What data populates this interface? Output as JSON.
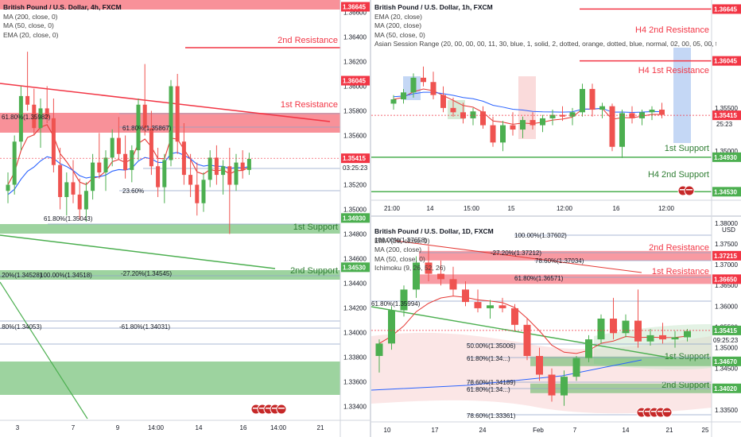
{
  "colors": {
    "bull": "#4caf50",
    "bear": "#ef5350",
    "resistance": "#f23645",
    "support": "#4caf50",
    "ema": "#e53935",
    "ma200": "#9e9e9e",
    "ma50": "#2962ff",
    "fib": "#8fa3c9"
  },
  "panels": {
    "h4": {
      "title": "British Pound / U.S. Dollar, 4h, FXCM",
      "studies": [
        "MA (200, close, 0)",
        "MA (50, close, 0)",
        "EMA (20, close, 0)"
      ],
      "currency": "USD",
      "timer": "03:25:23",
      "last_price": "1.35415",
      "x_labels": [
        "3",
        "7",
        "9",
        "14:00",
        "14",
        "16",
        "14:00",
        "21"
      ],
      "y_labels": [
        "1.36600",
        "1.36400",
        "1.36200",
        "1.36000",
        "1.35800",
        "1.35600",
        "1.35400",
        "1.35200",
        "1.35000",
        "1.34800",
        "1.34600",
        "1.34400",
        "1.34200",
        "1.34000",
        "1.33800",
        "1.33600",
        "1.33400"
      ],
      "zones": [
        {
          "label": "2nd Resistance",
          "tag": "1.36645",
          "kind": "resistance"
        },
        {
          "label": "1st Resistance",
          "tag": "1.36045",
          "kind": "resistance"
        },
        {
          "label": "1st Support",
          "tag": "1.34930",
          "kind": "support"
        },
        {
          "label": "2nd Support",
          "tag": "1.34530",
          "kind": "support"
        }
      ],
      "fibs": [
        "61.80%(1.35982)",
        "61.80%(1.35867)",
        "23.60%",
        "61.80%(1.35043)",
        "100.00%(1.34518)",
        "-27.20%(1.34545)",
        "-61.80%(1.34031)",
        ".20%(1.34528)",
        ".80%(1.34053)"
      ]
    },
    "h1": {
      "title": "British Pound / U.S. Dollar, 1h, FXCM",
      "studies": [
        "EMA (20, close)",
        "MA (200, close)",
        "MA (50, close, 0)",
        "Asian Session Range (20, 00, 00, 00, 11, 30, blue, 1, solid, 2, dotted, orange, dotted, blue, normal, 02, 00, 05, 00, teal, 1, solid, 2, dotted, te"
      ],
      "currency": "USD",
      "timer": "25:23",
      "last_price": "1.35415",
      "x_labels": [
        "21:00",
        "14",
        "15:00",
        "15",
        "12:00",
        "16",
        "12:00"
      ],
      "y_labels": [
        "1.35500",
        "1.35000"
      ],
      "zones": [
        {
          "label": "H4 2nd Resistance",
          "tag": "1.36645",
          "kind": "resistance"
        },
        {
          "label": "H4 1st Resistance",
          "tag": "1.36045",
          "kind": "resistance"
        },
        {
          "label": "1st Support",
          "tag": "1.34930",
          "kind": "support"
        },
        {
          "label": "H4 2nd Support",
          "tag": "1.34530",
          "kind": "support"
        }
      ]
    },
    "d1": {
      "title": "British Pound / U.S. Dollar, 1D, FXCM",
      "studies": [
        "EMA (20, close, 0)",
        "MA (200, close)",
        "MA (50, close, 0)",
        "Ichimoku (9, 26, 52, 26)"
      ],
      "currency": "USD",
      "timer": "09:25:23",
      "last_price": "1.35415",
      "x_labels": [
        "10",
        "17",
        "24",
        "Feb",
        "7",
        "14",
        "21",
        "25"
      ],
      "y_labels": [
        "1.38000",
        "1.37500",
        "1.37000",
        "1.36500",
        "1.36000",
        "1.35500",
        "1.35000",
        "1.34500",
        "1.34000",
        "1.33500"
      ],
      "zones": [
        {
          "label": "2nd Resistance",
          "tag": "1.37215",
          "kind": "resistance"
        },
        {
          "label": "1st Resistance",
          "tag": "1.36650",
          "kind": "resistance"
        },
        {
          "label": "1st Support",
          "tag": "1.34670",
          "kind": "support"
        },
        {
          "label": "2nd Support",
          "tag": "1.34020",
          "kind": "support"
        }
      ],
      "fibs": [
        "100.00%(1.37602)",
        "-27.20%(1.37212)",
        "78.60%(1.37034)",
        "61.80%(1.36571)",
        "61.80%(1.35994)",
        "50.00%(1.35006)",
        "61.80%(1.34...)",
        "78.60%(1.34189)",
        "61.80%(1.34...)",
        "78.60%(1.33361)",
        "100.00%(1.37658)"
      ]
    }
  },
  "chart_data": [
    {
      "type": "candlestick",
      "title": "British Pound / U.S. Dollar, 4h, FXCM",
      "ylim": [
        1.333,
        1.367
      ],
      "levels": {
        "2nd Resistance": 1.36645,
        "1st Resistance": 1.36045,
        "1st Support": 1.3493,
        "2nd Support": 1.3453,
        "last": 1.35415
      },
      "candles": [
        {
          "o": 1.3515,
          "h": 1.353,
          "l": 1.3505,
          "c": 1.352
        },
        {
          "o": 1.352,
          "h": 1.356,
          "l": 1.3512,
          "c": 1.3555
        },
        {
          "o": 1.3555,
          "h": 1.36,
          "l": 1.3548,
          "c": 1.3592
        },
        {
          "o": 1.3592,
          "h": 1.3628,
          "l": 1.358,
          "c": 1.3585
        },
        {
          "o": 1.3585,
          "h": 1.3598,
          "l": 1.356,
          "c": 1.3566
        },
        {
          "o": 1.3566,
          "h": 1.359,
          "l": 1.355,
          "c": 1.3582
        },
        {
          "o": 1.3582,
          "h": 1.36,
          "l": 1.357,
          "c": 1.3574
        },
        {
          "o": 1.3574,
          "h": 1.359,
          "l": 1.353,
          "c": 1.3536
        },
        {
          "o": 1.3536,
          "h": 1.355,
          "l": 1.35,
          "c": 1.351
        },
        {
          "o": 1.351,
          "h": 1.353,
          "l": 1.3495,
          "c": 1.3522
        },
        {
          "o": 1.3522,
          "h": 1.354,
          "l": 1.3505,
          "c": 1.3512
        },
        {
          "o": 1.3512,
          "h": 1.3525,
          "l": 1.3492,
          "c": 1.35
        },
        {
          "o": 1.35,
          "h": 1.3522,
          "l": 1.349,
          "c": 1.3515
        },
        {
          "o": 1.3515,
          "h": 1.3545,
          "l": 1.3508,
          "c": 1.3538
        },
        {
          "o": 1.3538,
          "h": 1.3562,
          "l": 1.3525,
          "c": 1.353
        },
        {
          "o": 1.353,
          "h": 1.3548,
          "l": 1.3515,
          "c": 1.3542
        },
        {
          "o": 1.3542,
          "h": 1.3565,
          "l": 1.3535,
          "c": 1.3558
        },
        {
          "o": 1.3558,
          "h": 1.3575,
          "l": 1.354,
          "c": 1.3545
        },
        {
          "o": 1.3545,
          "h": 1.356,
          "l": 1.3525,
          "c": 1.3532
        },
        {
          "o": 1.3532,
          "h": 1.3552,
          "l": 1.3522,
          "c": 1.3548
        },
        {
          "o": 1.3548,
          "h": 1.359,
          "l": 1.354,
          "c": 1.3585
        },
        {
          "o": 1.3585,
          "h": 1.3618,
          "l": 1.356,
          "c": 1.3566
        },
        {
          "o": 1.3566,
          "h": 1.358,
          "l": 1.3528,
          "c": 1.3535
        },
        {
          "o": 1.3535,
          "h": 1.355,
          "l": 1.351,
          "c": 1.3518
        },
        {
          "o": 1.3518,
          "h": 1.3545,
          "l": 1.3505,
          "c": 1.354
        },
        {
          "o": 1.354,
          "h": 1.3605,
          "l": 1.3535,
          "c": 1.36
        },
        {
          "o": 1.36,
          "h": 1.361,
          "l": 1.3545,
          "c": 1.3555
        },
        {
          "o": 1.3555,
          "h": 1.357,
          "l": 1.352,
          "c": 1.3528
        },
        {
          "o": 1.3528,
          "h": 1.3545,
          "l": 1.351,
          "c": 1.352
        },
        {
          "o": 1.352,
          "h": 1.3538,
          "l": 1.3495,
          "c": 1.3505
        },
        {
          "o": 1.3505,
          "h": 1.353,
          "l": 1.3498,
          "c": 1.3524
        },
        {
          "o": 1.3524,
          "h": 1.3548,
          "l": 1.3518,
          "c": 1.3542
        },
        {
          "o": 1.3542,
          "h": 1.3552,
          "l": 1.352,
          "c": 1.3528
        },
        {
          "o": 1.3528,
          "h": 1.354,
          "l": 1.3512,
          "c": 1.3535
        },
        {
          "o": 1.3535,
          "h": 1.355,
          "l": 1.348,
          "c": 1.352
        },
        {
          "o": 1.352,
          "h": 1.3545,
          "l": 1.3515,
          "c": 1.3538
        },
        {
          "o": 1.3538,
          "h": 1.3548,
          "l": 1.3525,
          "c": 1.3532
        },
        {
          "o": 1.3532,
          "h": 1.3546,
          "l": 1.3528,
          "c": 1.3541
        }
      ]
    },
    {
      "type": "candlestick",
      "title": "British Pound / U.S. Dollar, 1h, FXCM",
      "ylim": [
        1.3445,
        1.3675
      ],
      "levels": {
        "H4 2nd Resistance": 1.36645,
        "H4 1st Resistance": 1.36045,
        "1st Support": 1.3493,
        "H4 2nd Support": 1.3453,
        "last": 1.35415
      },
      "candles": [
        {
          "o": 1.3555,
          "h": 1.3565,
          "l": 1.3548,
          "c": 1.356
        },
        {
          "o": 1.356,
          "h": 1.3572,
          "l": 1.3555,
          "c": 1.3568
        },
        {
          "o": 1.3568,
          "h": 1.359,
          "l": 1.3562,
          "c": 1.3585
        },
        {
          "o": 1.3585,
          "h": 1.3598,
          "l": 1.3575,
          "c": 1.358
        },
        {
          "o": 1.358,
          "h": 1.3592,
          "l": 1.356,
          "c": 1.3565
        },
        {
          "o": 1.3565,
          "h": 1.3575,
          "l": 1.3545,
          "c": 1.355
        },
        {
          "o": 1.355,
          "h": 1.3562,
          "l": 1.354,
          "c": 1.3545
        },
        {
          "o": 1.3545,
          "h": 1.3556,
          "l": 1.3532,
          "c": 1.3538
        },
        {
          "o": 1.3538,
          "h": 1.355,
          "l": 1.353,
          "c": 1.3546
        },
        {
          "o": 1.3546,
          "h": 1.3552,
          "l": 1.3526,
          "c": 1.353
        },
        {
          "o": 1.353,
          "h": 1.354,
          "l": 1.3505,
          "c": 1.351
        },
        {
          "o": 1.351,
          "h": 1.3535,
          "l": 1.35,
          "c": 1.353
        },
        {
          "o": 1.353,
          "h": 1.3545,
          "l": 1.3518,
          "c": 1.3525
        },
        {
          "o": 1.3525,
          "h": 1.354,
          "l": 1.3515,
          "c": 1.3536
        },
        {
          "o": 1.3536,
          "h": 1.3545,
          "l": 1.3525,
          "c": 1.353
        },
        {
          "o": 1.353,
          "h": 1.3542,
          "l": 1.3522,
          "c": 1.3538
        },
        {
          "o": 1.3538,
          "h": 1.3548,
          "l": 1.353,
          "c": 1.3542
        },
        {
          "o": 1.3542,
          "h": 1.3552,
          "l": 1.3535,
          "c": 1.354
        },
        {
          "o": 1.354,
          "h": 1.355,
          "l": 1.353,
          "c": 1.3545
        },
        {
          "o": 1.3545,
          "h": 1.3578,
          "l": 1.354,
          "c": 1.3572
        },
        {
          "o": 1.3572,
          "h": 1.3578,
          "l": 1.354,
          "c": 1.3548
        },
        {
          "o": 1.3548,
          "h": 1.3556,
          "l": 1.3538,
          "c": 1.3552
        },
        {
          "o": 1.3552,
          "h": 1.3555,
          "l": 1.35,
          "c": 1.3505
        },
        {
          "o": 1.3505,
          "h": 1.3548,
          "l": 1.3492,
          "c": 1.3544
        },
        {
          "o": 1.3544,
          "h": 1.3552,
          "l": 1.3532,
          "c": 1.3538
        },
        {
          "o": 1.3538,
          "h": 1.3548,
          "l": 1.353,
          "c": 1.3545
        },
        {
          "o": 1.3545,
          "h": 1.3552,
          "l": 1.3536,
          "c": 1.3548
        },
        {
          "o": 1.3548,
          "h": 1.3556,
          "l": 1.3538,
          "c": 1.3542
        }
      ]
    },
    {
      "type": "candlestick",
      "title": "British Pound / U.S. Dollar, 1D, FXCM",
      "ylim": [
        1.3325,
        1.3815
      ],
      "levels": {
        "2nd Resistance": 1.37215,
        "1st Resistance": 1.3665,
        "1st Support": 1.3467,
        "2nd Support": 1.3402,
        "last": 1.35415
      },
      "candles": [
        {
          "o": 1.348,
          "h": 1.352,
          "l": 1.344,
          "c": 1.351
        },
        {
          "o": 1.351,
          "h": 1.36,
          "l": 1.3495,
          "c": 1.359
        },
        {
          "o": 1.359,
          "h": 1.365,
          "l": 1.3575,
          "c": 1.364
        },
        {
          "o": 1.364,
          "h": 1.372,
          "l": 1.362,
          "c": 1.3705
        },
        {
          "o": 1.3705,
          "h": 1.3745,
          "l": 1.366,
          "c": 1.3678
        },
        {
          "o": 1.3678,
          "h": 1.371,
          "l": 1.365,
          "c": 1.3665
        },
        {
          "o": 1.3665,
          "h": 1.3695,
          "l": 1.3625,
          "c": 1.364
        },
        {
          "o": 1.364,
          "h": 1.366,
          "l": 1.36,
          "c": 1.361
        },
        {
          "o": 1.361,
          "h": 1.364,
          "l": 1.3585,
          "c": 1.3595
        },
        {
          "o": 1.3595,
          "h": 1.3615,
          "l": 1.357,
          "c": 1.3602
        },
        {
          "o": 1.3602,
          "h": 1.362,
          "l": 1.3585,
          "c": 1.3595
        },
        {
          "o": 1.3595,
          "h": 1.3605,
          "l": 1.354,
          "c": 1.3555
        },
        {
          "o": 1.3555,
          "h": 1.357,
          "l": 1.347,
          "c": 1.348
        },
        {
          "o": 1.348,
          "h": 1.35,
          "l": 1.342,
          "c": 1.3435
        },
        {
          "o": 1.3435,
          "h": 1.345,
          "l": 1.337,
          "c": 1.3385
        },
        {
          "o": 1.3385,
          "h": 1.3445,
          "l": 1.336,
          "c": 1.343
        },
        {
          "o": 1.343,
          "h": 1.348,
          "l": 1.342,
          "c": 1.3475
        },
        {
          "o": 1.3475,
          "h": 1.353,
          "l": 1.3465,
          "c": 1.352
        },
        {
          "o": 1.352,
          "h": 1.358,
          "l": 1.351,
          "c": 1.357
        },
        {
          "o": 1.357,
          "h": 1.362,
          "l": 1.352,
          "c": 1.3535
        },
        {
          "o": 1.3535,
          "h": 1.358,
          "l": 1.3525,
          "c": 1.3565
        },
        {
          "o": 1.3565,
          "h": 1.364,
          "l": 1.35,
          "c": 1.3515
        },
        {
          "o": 1.3515,
          "h": 1.3545,
          "l": 1.3505,
          "c": 1.353
        },
        {
          "o": 1.353,
          "h": 1.356,
          "l": 1.351,
          "c": 1.352
        },
        {
          "o": 1.352,
          "h": 1.354,
          "l": 1.35,
          "c": 1.3525
        },
        {
          "o": 1.3525,
          "h": 1.3545,
          "l": 1.3515,
          "c": 1.354
        }
      ]
    }
  ]
}
